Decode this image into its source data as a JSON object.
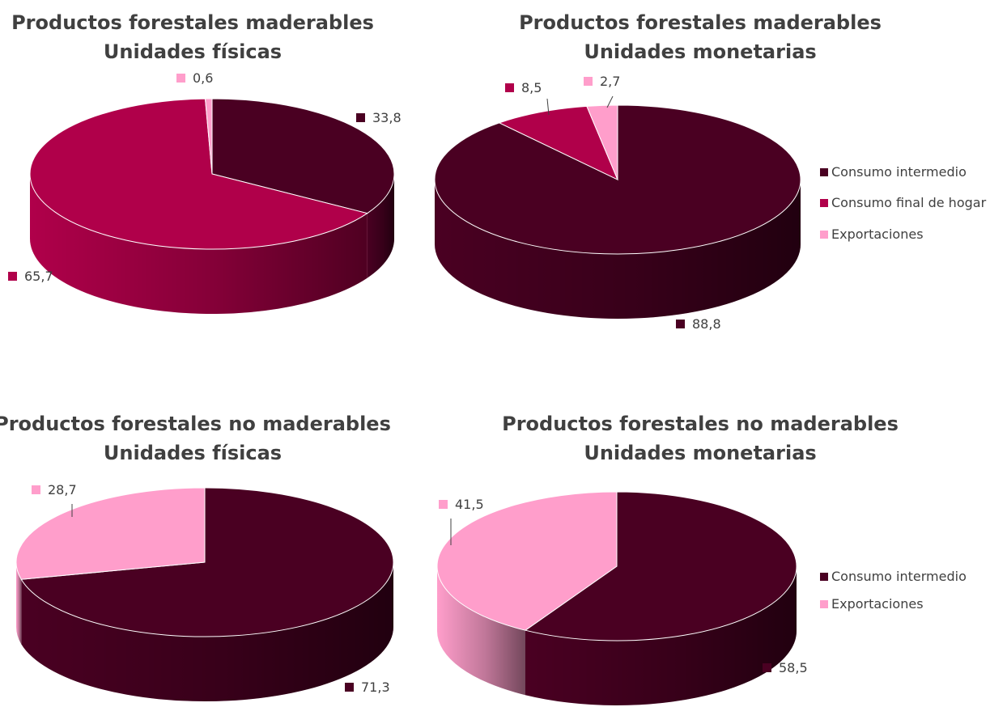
{
  "colors": {
    "Consumo intermedio": "#4a0022",
    "Consumo final de hogares": "#b0004a",
    "Exportaciones": "#ff9ecb"
  },
  "chart_data": [
    {
      "type": "pie",
      "title_lines": [
        "Productos forestales maderables",
        "Unidades físicas"
      ],
      "slices": [
        {
          "name": "Consumo intermedio",
          "value": 33.8,
          "label": "33,8"
        },
        {
          "name": "Consumo final de hogares",
          "value": 65.7,
          "label": "65,7"
        },
        {
          "name": "Exportaciones",
          "value": 0.6,
          "label": "0,6"
        }
      ],
      "legend": null
    },
    {
      "type": "pie",
      "title_lines": [
        "Productos forestales maderables",
        "Unidades monetarias"
      ],
      "slices": [
        {
          "name": "Consumo intermedio",
          "value": 88.8,
          "label": "88,8"
        },
        {
          "name": "Consumo final de hogares",
          "value": 8.5,
          "label": "8,5"
        },
        {
          "name": "Exportaciones",
          "value": 2.7,
          "label": "2,7"
        }
      ],
      "legend": {
        "position": "right",
        "entries": [
          "Consumo intermedio",
          "Consumo final de hogar",
          "Exportaciones"
        ]
      }
    },
    {
      "type": "pie",
      "title_lines": [
        "Productos forestales no maderables",
        "Unidades físicas"
      ],
      "slices": [
        {
          "name": "Consumo intermedio",
          "value": 71.3,
          "label": "71,3"
        },
        {
          "name": "Exportaciones",
          "value": 28.7,
          "label": "28,7"
        }
      ],
      "legend": null
    },
    {
      "type": "pie",
      "title_lines": [
        "Productos forestales no maderables",
        "Unidades monetarias"
      ],
      "slices": [
        {
          "name": "Consumo intermedio",
          "value": 58.5,
          "label": "58,5"
        },
        {
          "name": "Exportaciones",
          "value": 41.5,
          "label": "41,5"
        }
      ],
      "legend": {
        "position": "right",
        "entries": [
          "Consumo intermedio",
          "Exportaciones"
        ]
      }
    }
  ]
}
